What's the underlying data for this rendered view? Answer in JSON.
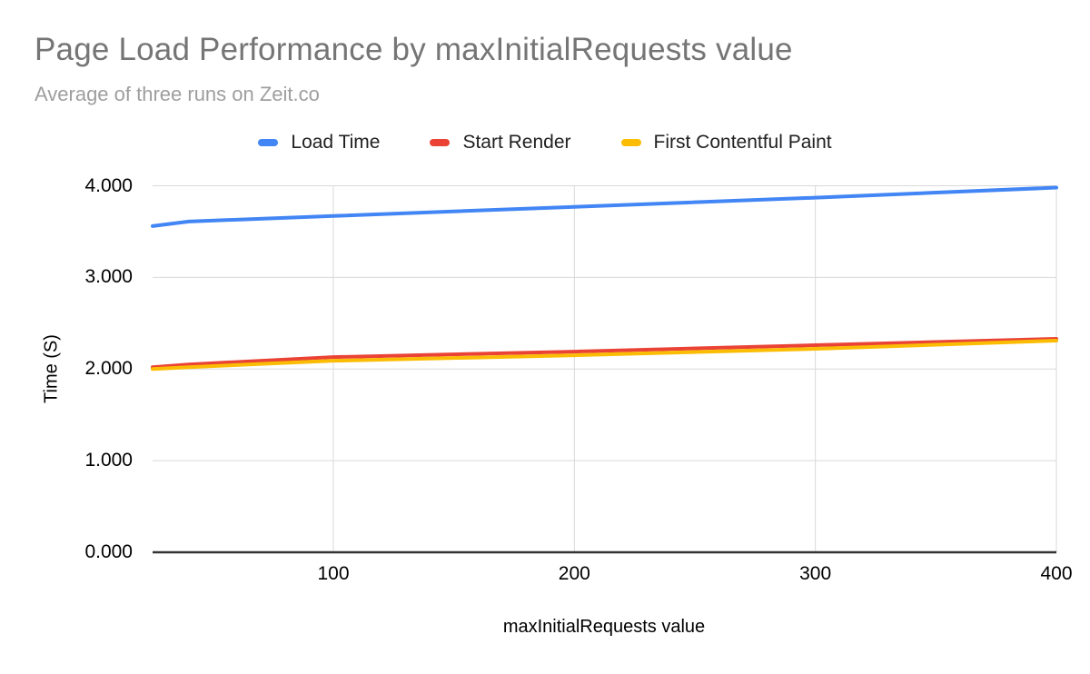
{
  "chart_data": {
    "type": "line",
    "title": "Page Load Performance by maxInitialRequests value",
    "subtitle": "Average of three runs on Zeit.co",
    "xlabel": "maxInitialRequests value",
    "ylabel": "Time (S)",
    "x": [
      25,
      40,
      100,
      200,
      300,
      400
    ],
    "series": [
      {
        "name": "Load Time",
        "color": "#4285f4",
        "values": [
          3.56,
          3.61,
          3.67,
          3.77,
          3.87,
          3.98
        ]
      },
      {
        "name": "Start Render",
        "color": "#ea4335",
        "values": [
          2.02,
          2.05,
          2.13,
          2.19,
          2.26,
          2.33
        ]
      },
      {
        "name": "First Contentful Paint",
        "color": "#fbbc04",
        "values": [
          2.0,
          2.02,
          2.09,
          2.15,
          2.22,
          2.31
        ]
      }
    ],
    "xlim": [
      25,
      400
    ],
    "ylim": [
      0,
      4
    ],
    "x_ticks": {
      "values": [
        100,
        200,
        300,
        400
      ],
      "labels": [
        "100",
        "200",
        "300",
        "400"
      ]
    },
    "y_ticks": {
      "values": [
        0,
        1,
        2,
        3,
        4
      ],
      "labels": [
        "0.000",
        "1.000",
        "2.000",
        "3.000",
        "4.000"
      ]
    },
    "grid": true,
    "legend_position": "top"
  },
  "colors": {
    "background": "#ffffff",
    "title": "#757575",
    "subtitle": "#9e9e9e",
    "tick_label": "#000000",
    "axis_title": "#000000",
    "legend_text": "#212121",
    "gridline": "#d9d9d9",
    "axis_line": "#333333"
  }
}
